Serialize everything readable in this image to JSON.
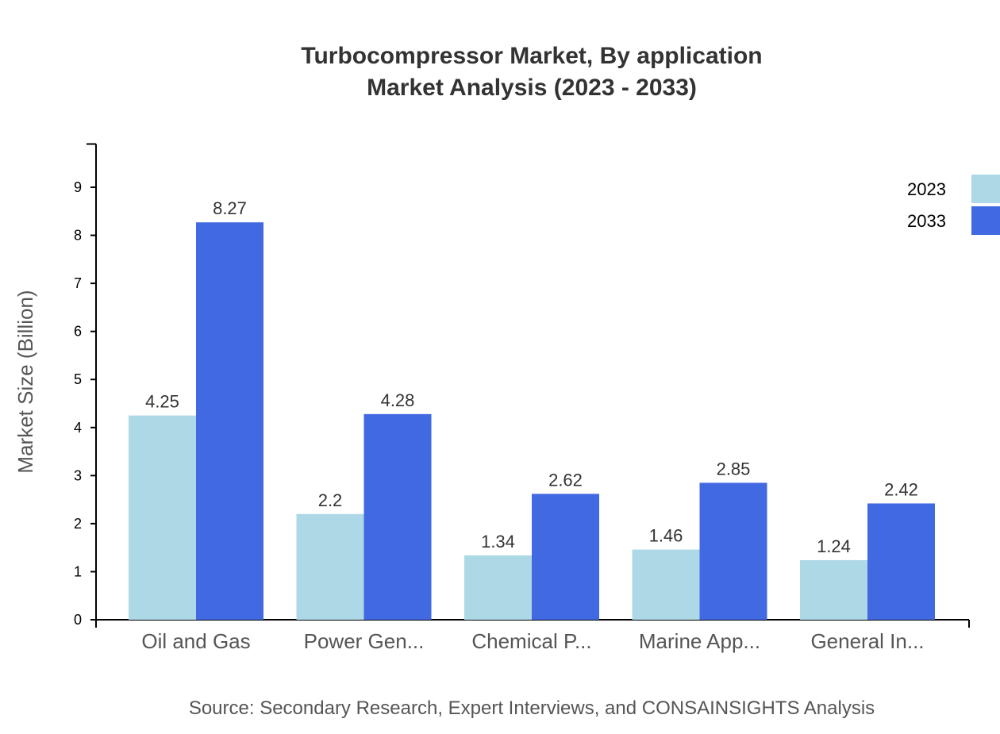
{
  "chart_data": {
    "type": "bar",
    "title": "Turbocompressor Market, By application",
    "subtitle": "Market Analysis (2023 - 2033)",
    "xlabel": "",
    "ylabel": "Market Size (Billion)",
    "ylim": [
      0,
      9.9
    ],
    "yticks": [
      0,
      1,
      2,
      3,
      4,
      5,
      6,
      7,
      8,
      9
    ],
    "categories": [
      "Oil and Gas",
      "Power Gen...",
      "Chemical P...",
      "Marine App...",
      "General In..."
    ],
    "series": [
      {
        "name": "2023",
        "color": "#add8e6",
        "values": [
          4.25,
          2.2,
          1.34,
          1.46,
          1.24
        ]
      },
      {
        "name": "2033",
        "color": "#4169e1",
        "values": [
          8.27,
          4.28,
          2.62,
          2.85,
          2.42
        ]
      }
    ],
    "grid": false,
    "legend": "top-right",
    "source": "Source: Secondary Research, Expert Interviews, and CONSAINSIGHTS Analysis"
  }
}
